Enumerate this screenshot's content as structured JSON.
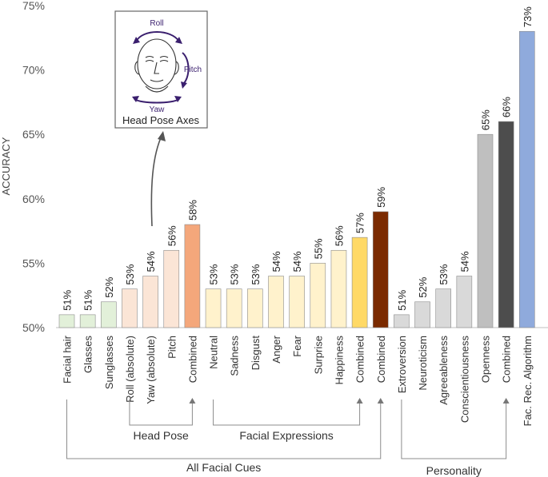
{
  "chart_data": {
    "type": "bar",
    "ylabel": "ACCURACY",
    "ylim": [
      50,
      75
    ],
    "yticks": [
      "50%",
      "55%",
      "60%",
      "65%",
      "70%",
      "75%"
    ],
    "grid": false,
    "categories": [
      "Facial hair",
      "Glasses",
      "Sunglasses",
      "Roll (absolute)",
      "Yaw (absolute)",
      "Pitch",
      "Combined",
      "Neutral",
      "Sadness",
      "Disgust",
      "Anger",
      "Fear",
      "Surprise",
      "Happiness",
      "Combined",
      "Combined",
      "Extroversion",
      "Neuroticism",
      "Agreeableness",
      "Conscientiousness",
      "Openness",
      "Combined",
      "Fac. Rec. Algorithm"
    ],
    "values": [
      51,
      51,
      52,
      53,
      54,
      56,
      58,
      53,
      53,
      53,
      54,
      54,
      55,
      56,
      57,
      59,
      51,
      52,
      53,
      54,
      65,
      66,
      73
    ],
    "value_labels": [
      "51%",
      "51%",
      "52%",
      "53%",
      "54%",
      "56%",
      "58%",
      "53%",
      "53%",
      "53%",
      "54%",
      "54%",
      "55%",
      "56%",
      "57%",
      "59%",
      "51%",
      "52%",
      "53%",
      "54%",
      "65%",
      "66%",
      "73%"
    ],
    "bar_colors": [
      "#e2f0d9",
      "#e2f0d9",
      "#e2f0d9",
      "#fbe5d6",
      "#fbe5d6",
      "#fbe5d6",
      "#f4a77b",
      "#fff2cc",
      "#fff2cc",
      "#fff2cc",
      "#fff2cc",
      "#fff2cc",
      "#fff2cc",
      "#fff2cc",
      "#ffd966",
      "#7b2a00",
      "#d9d9d9",
      "#d9d9d9",
      "#d9d9d9",
      "#d9d9d9",
      "#bfbfbf",
      "#4d4d4d",
      "#8faadc"
    ],
    "groups": [
      {
        "label": "Head Pose",
        "from": 3,
        "to": 6
      },
      {
        "label": "Facial Expressions",
        "from": 7,
        "to": 14
      },
      {
        "label": "All Facial Cues",
        "from": 0,
        "to": 15
      },
      {
        "label": "Personality",
        "from": 16,
        "to": 21
      }
    ]
  },
  "inset": {
    "title": "Head Pose Axes",
    "labels": {
      "roll": "Roll",
      "pitch": "Pitch",
      "yaw": "Yaw"
    }
  }
}
